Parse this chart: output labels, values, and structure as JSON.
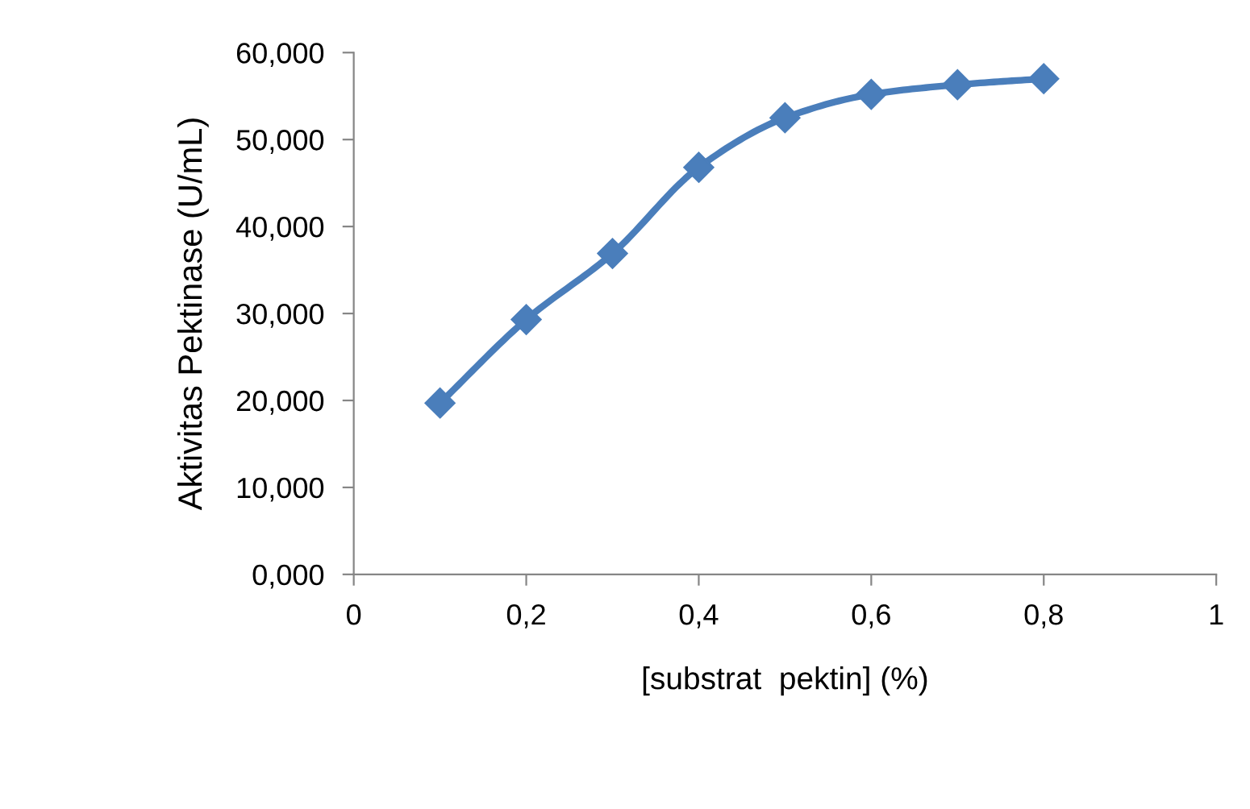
{
  "chart_data": {
    "type": "line",
    "xlabel": "[substrat  pektin] (%)",
    "ylabel": "Aktivitas Pektinase (U/mL)",
    "x": [
      0.1,
      0.2,
      0.3,
      0.4,
      0.5,
      0.6,
      0.7,
      0.8
    ],
    "series": [
      {
        "color": "#4a7ebb",
        "values": [
          19.7,
          29.3,
          36.9,
          46.8,
          52.5,
          55.2,
          56.3,
          57.0
        ]
      }
    ],
    "xlim": [
      0,
      1
    ],
    "xticks": [
      0,
      {
        "value": 0.2,
        "label": "0,2"
      },
      {
        "value": 0.4,
        "label": "0,4"
      },
      {
        "value": 0.6,
        "label": "0,6"
      },
      {
        "value": 0.8,
        "label": "0,8"
      },
      1
    ],
    "ylim": [
      0,
      60
    ],
    "yticks": [
      {
        "value": 0,
        "label": "0,000"
      },
      {
        "value": 10,
        "label": "10,000"
      },
      {
        "value": 20,
        "label": "20,000"
      },
      {
        "value": 30,
        "label": "30,000"
      },
      {
        "value": 40,
        "label": "40,000"
      },
      {
        "value": 50,
        "label": "50,000"
      },
      {
        "value": 60,
        "label": "60,000"
      }
    ],
    "grid": false,
    "legend": false,
    "marker": "diamond",
    "line_style": "solid"
  }
}
